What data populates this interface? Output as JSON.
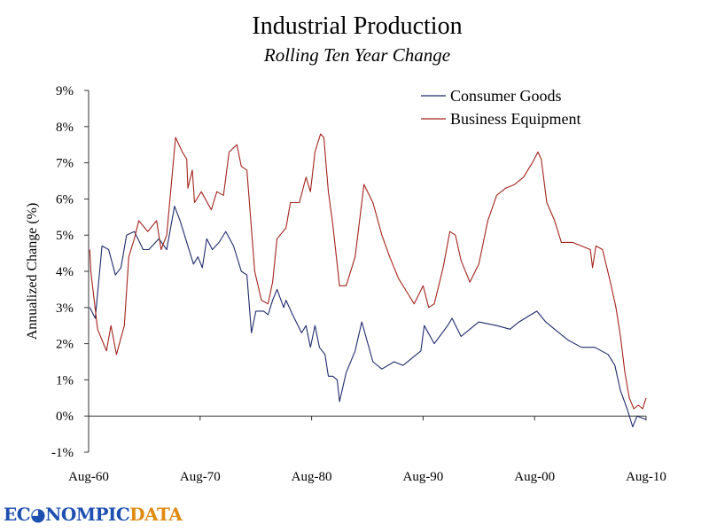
{
  "chart_data": {
    "type": "line",
    "title": "Industrial Production",
    "subtitle": "Rolling Ten Year Change",
    "xlabel": "",
    "ylabel": "Annualized Change (%)",
    "xlim": [
      1960.6,
      2010.6
    ],
    "ylim": [
      -1,
      9
    ],
    "x_ticks": [
      1960.6,
      1970.6,
      1980.6,
      1990.6,
      2000.6,
      2010.6
    ],
    "x_tick_labels": [
      "Aug-60",
      "Aug-70",
      "Aug-80",
      "Aug-90",
      "Aug-00",
      "Aug-10"
    ],
    "y_ticks": [
      -1,
      0,
      1,
      2,
      3,
      4,
      5,
      6,
      7,
      8,
      9
    ],
    "y_tick_labels": [
      "-1%",
      "0%",
      "1%",
      "2%",
      "3%",
      "4%",
      "5%",
      "6%",
      "7%",
      "8%",
      "9%"
    ],
    "grid": false,
    "legend": "top-right",
    "series": [
      {
        "name": "Consumer Goods",
        "color": "#1f2a6b",
        "x": [
          1960.7,
          1961.2,
          1961.8,
          1962.4,
          1963.0,
          1963.5,
          1964.0,
          1964.7,
          1965.5,
          1966.0,
          1966.9,
          1967.6,
          1968.3,
          1968.8,
          1969.2,
          1970.0,
          1970.4,
          1970.8,
          1971.2,
          1971.7,
          1972.3,
          1972.9,
          1973.6,
          1974.3,
          1974.8,
          1975.2,
          1975.6,
          1976.3,
          1976.7,
          1977.1,
          1977.5,
          1978.1,
          1978.3,
          1978.9,
          1979.7,
          1980.1,
          1980.5,
          1980.9,
          1981.3,
          1981.8,
          1982.1,
          1982.5,
          1982.9,
          1983.1,
          1983.7,
          1984.5,
          1985.1,
          1986.1,
          1986.9,
          1988.0,
          1988.8,
          1989.6,
          1990.4,
          1990.7,
          1991.6,
          1992.8,
          1993.2,
          1994.0,
          1995.6,
          1997.2,
          1998.4,
          1999.2,
          2000.8,
          2001.6,
          2002.4,
          2003.6,
          2004.8,
          2006.0,
          2007.2,
          2007.8,
          2008.3,
          2008.9,
          2009.4,
          2009.8,
          2010.6
        ],
        "y": [
          3.0,
          2.7,
          4.7,
          4.6,
          3.9,
          4.1,
          5.0,
          5.1,
          4.6,
          4.6,
          4.9,
          4.6,
          5.8,
          5.4,
          5.0,
          4.2,
          4.4,
          4.1,
          4.9,
          4.6,
          4.8,
          5.1,
          4.7,
          4.0,
          3.9,
          2.3,
          2.9,
          2.9,
          2.8,
          3.2,
          3.5,
          3.0,
          3.2,
          2.8,
          2.3,
          2.5,
          1.9,
          2.5,
          1.9,
          1.7,
          1.1,
          1.1,
          1.0,
          0.4,
          1.2,
          1.8,
          2.6,
          1.5,
          1.3,
          1.5,
          1.4,
          1.6,
          1.8,
          2.5,
          2.0,
          2.5,
          2.7,
          2.2,
          2.6,
          2.5,
          2.4,
          2.6,
          2.9,
          2.6,
          2.4,
          2.1,
          1.9,
          1.9,
          1.7,
          1.4,
          0.7,
          0.2,
          -0.3,
          0.0,
          -0.1
        ]
      },
      {
        "name": "Business Equipment",
        "color": "#a3231c",
        "x": [
          1960.7,
          1960.8,
          1961.4,
          1962.2,
          1962.6,
          1963.1,
          1963.8,
          1964.2,
          1964.7,
          1965.1,
          1965.9,
          1966.7,
          1967.1,
          1967.6,
          1968.4,
          1969.0,
          1969.4,
          1969.5,
          1969.9,
          1970.1,
          1970.7,
          1971.6,
          1972.1,
          1972.7,
          1973.2,
          1973.9,
          1974.3,
          1974.8,
          1975.5,
          1976.1,
          1976.7,
          1977.1,
          1977.5,
          1978.3,
          1978.7,
          1979.5,
          1980.1,
          1980.5,
          1980.9,
          1981.4,
          1981.7,
          1982.1,
          1982.5,
          1983.1,
          1983.7,
          1984.5,
          1985.3,
          1986.1,
          1986.9,
          1987.6,
          1988.4,
          1989.2,
          1989.8,
          1990.6,
          1991.1,
          1991.6,
          1992.4,
          1993.0,
          1993.5,
          1994.0,
          1994.8,
          1995.6,
          1996.4,
          1997.2,
          1998.0,
          1998.8,
          1999.6,
          2000.4,
          2000.9,
          2001.2,
          2001.7,
          2002.4,
          2003.0,
          2004.0,
          2004.8,
          2005.6,
          2005.8,
          2006.1,
          2006.7,
          2007.4,
          2007.9,
          2008.3,
          2008.7,
          2009.1,
          2009.5,
          2009.9,
          2010.3,
          2010.6
        ],
        "y": [
          4.6,
          4.0,
          2.4,
          1.8,
          2.5,
          1.7,
          2.5,
          4.4,
          4.9,
          5.4,
          5.1,
          5.4,
          4.6,
          5.0,
          7.7,
          7.3,
          7.1,
          6.3,
          6.8,
          5.9,
          6.2,
          5.7,
          6.2,
          6.1,
          7.3,
          7.5,
          6.9,
          6.8,
          4.0,
          3.2,
          3.1,
          3.7,
          4.9,
          5.2,
          5.9,
          5.9,
          6.6,
          6.2,
          7.3,
          7.8,
          7.7,
          6.2,
          5.3,
          3.6,
          3.6,
          4.4,
          6.4,
          5.9,
          5.0,
          4.4,
          3.8,
          3.4,
          3.1,
          3.6,
          3.0,
          3.1,
          4.1,
          5.1,
          5.0,
          4.3,
          3.7,
          4.2,
          5.4,
          6.1,
          6.3,
          6.4,
          6.6,
          7.0,
          7.3,
          7.1,
          5.9,
          5.4,
          4.8,
          4.8,
          4.7,
          4.6,
          4.1,
          4.7,
          4.6,
          3.7,
          3.0,
          2.2,
          1.2,
          0.5,
          0.2,
          0.3,
          0.2,
          0.5
        ]
      }
    ]
  },
  "logo": {
    "part1": "ECONOMIC",
    "part2": "DATA",
    "text": "ECONOMPICDATA"
  }
}
